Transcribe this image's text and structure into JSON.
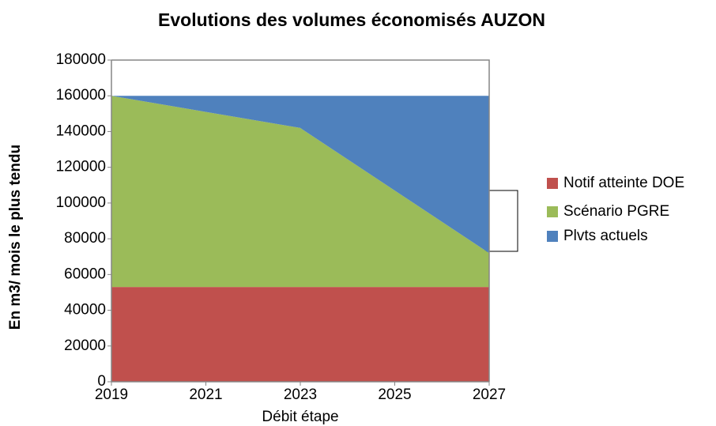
{
  "chart_data": {
    "type": "area",
    "stacked": true,
    "title": "Evolutions des volumes économisés AUZON",
    "x_label": "Débit étape",
    "y_label": "En m3/ mois le plus tendu",
    "x": [
      2019,
      2023,
      2027
    ],
    "series": [
      {
        "name": "Notif atteinte DOE",
        "color": "#c0504d",
        "values": [
          53000,
          53000,
          53000
        ]
      },
      {
        "name": "Scénario PGRE",
        "color": "#9bbb59",
        "values": [
          107000,
          89000,
          19000
        ]
      },
      {
        "name": "Plvts actuels",
        "color": "#4f81bd",
        "values": [
          0,
          18000,
          88000
        ]
      }
    ],
    "xlim": [
      2019,
      2027
    ],
    "xticks": [
      2019,
      2021,
      2023,
      2025,
      2027
    ],
    "ylim": [
      0,
      180000
    ],
    "yticks": [
      0,
      20000,
      40000,
      60000,
      80000,
      100000,
      120000,
      140000,
      160000,
      180000
    ],
    "grid": false,
    "legend": "right"
  }
}
